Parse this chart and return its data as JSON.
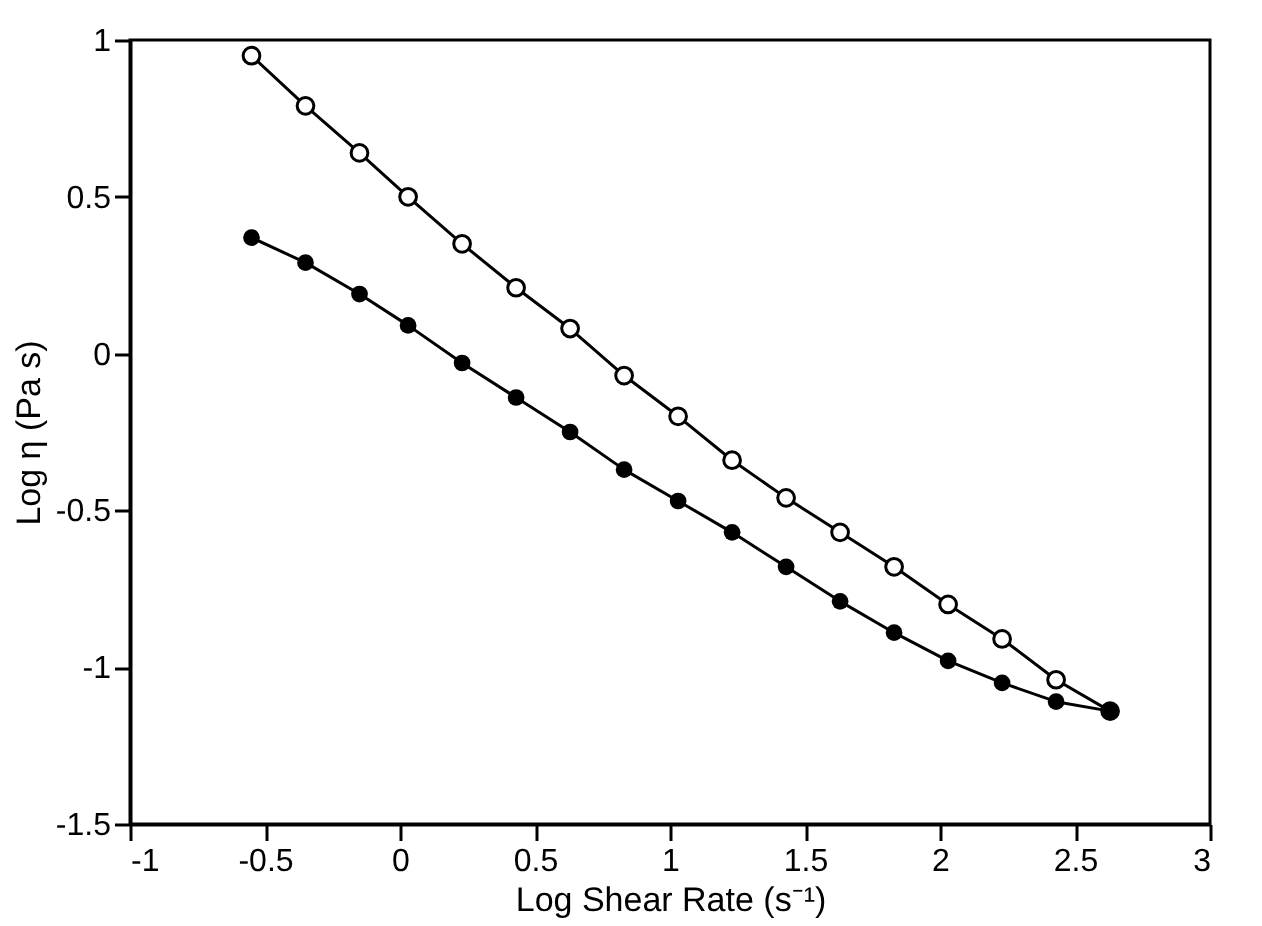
{
  "chart_data": {
    "type": "line",
    "xlabel": "Log Shear Rate (s⁻¹)",
    "ylabel": "Log η (Pa s)",
    "xlim": [
      -1,
      3
    ],
    "xticks": [
      -1,
      -0.5,
      0,
      0.5,
      1,
      1.5,
      2,
      2.5,
      3
    ],
    "ylim": [
      -1.5,
      1
    ],
    "yticks": [
      -1.5,
      -1,
      -0.5,
      0,
      0.5,
      1
    ],
    "grid": false,
    "marker": "circle",
    "line_style": "solid",
    "series": [
      {
        "color": "#000000",
        "x": [
          -0.55,
          -0.35,
          -0.15,
          0.03,
          0.23,
          0.43,
          0.63,
          0.83,
          1.03,
          1.23,
          1.43,
          1.63,
          1.83,
          2.03,
          2.23,
          2.43,
          2.63
        ],
        "values": [
          0.95,
          0.79,
          0.64,
          0.5,
          0.35,
          0.21,
          0.08,
          -0.07,
          -0.2,
          -0.34,
          -0.46,
          -0.57,
          -0.68,
          -0.8,
          -0.91,
          -1.04,
          -1.14
        ]
      },
      {
        "color": "#000000",
        "x": [
          -0.55,
          -0.35,
          -0.15,
          0.03,
          0.23,
          0.43,
          0.63,
          0.83,
          1.03,
          1.23,
          1.43,
          1.63,
          1.83,
          2.03,
          2.23,
          2.43,
          2.63
        ],
        "values": [
          0.37,
          0.29,
          0.19,
          0.09,
          -0.03,
          -0.14,
          -0.25,
          -0.37,
          -0.47,
          -0.57,
          -0.68,
          -0.79,
          -0.89,
          -0.98,
          -1.05,
          -1.11,
          -1.14
        ]
      }
    ]
  }
}
